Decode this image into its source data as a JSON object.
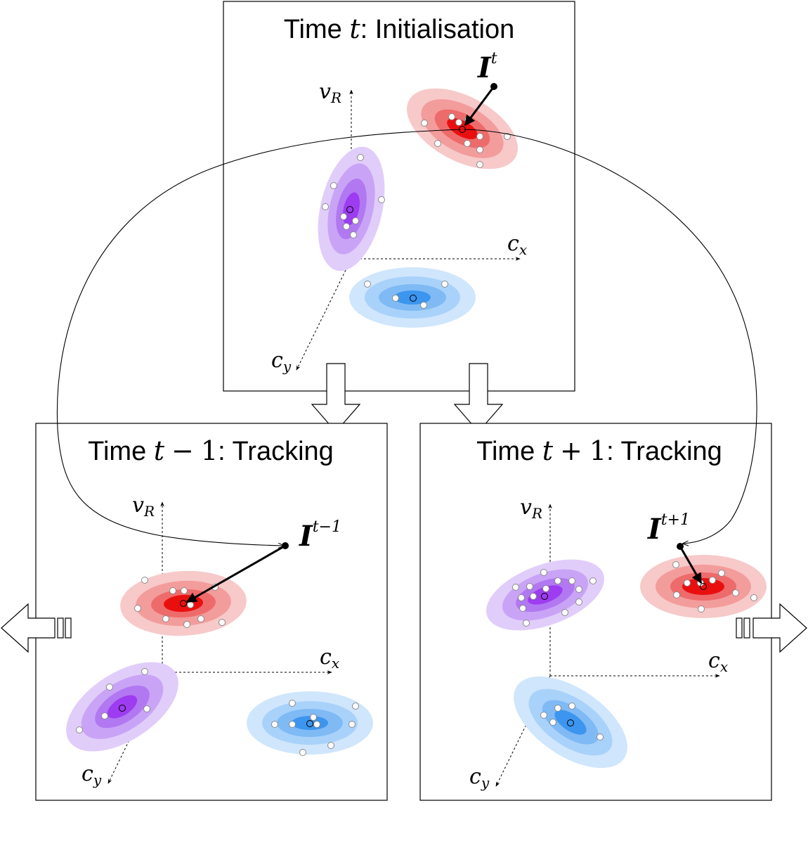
{
  "panels": {
    "init": {
      "label_prefix": "Time ",
      "time_var": "t",
      "label_suffix": ": Initialisation",
      "instance_base": "I",
      "instance_sup": "t"
    },
    "prev": {
      "label_prefix": "Time ",
      "time_var": "t",
      "time_op": "−",
      "time_num": "1",
      "label_suffix": ": Tracking",
      "instance_base": "I",
      "instance_sup": "t−1"
    },
    "next": {
      "label_prefix": "Time ",
      "time_var": "t",
      "time_op": "+",
      "time_num": "1",
      "label_suffix": ": Tracking",
      "instance_base": "I",
      "instance_sup": "t+1"
    }
  },
  "axes": {
    "vertical": {
      "base": "v",
      "sub": "R"
    },
    "horizontal": {
      "base": "c",
      "sub": "x"
    },
    "depth": {
      "base": "c",
      "sub": "y"
    }
  },
  "colors": {
    "red": [
      "#f7c9c9",
      "#f39c9c",
      "#ee6b6b",
      "#ea0f0f"
    ],
    "purple": [
      "#e1cdfa",
      "#c9a4f6",
      "#b178f2",
      "#9d3cf0"
    ],
    "blue": [
      "#cfe6fc",
      "#a9d2fa",
      "#7fbaf5",
      "#3c95ee"
    ]
  },
  "icons": [
    "initialisation-to-tracking-arrow",
    "play-backward-arrow",
    "play-forward-arrow",
    "instance-pointer-arrow",
    "propagation-arc"
  ]
}
